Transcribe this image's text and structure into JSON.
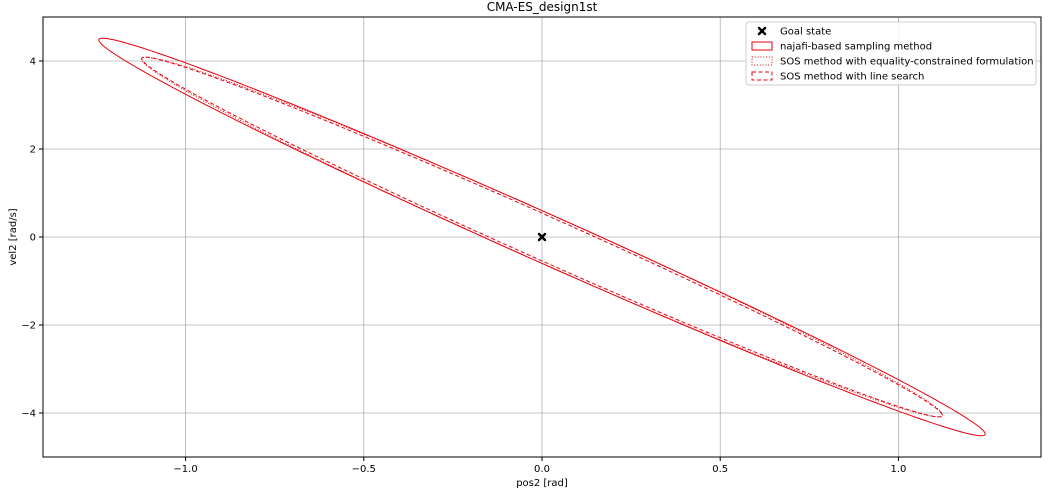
{
  "chart_data": {
    "type": "line",
    "title": "CMA-ES_design1st",
    "xlabel": "pos2 [rad]",
    "ylabel": "vel2 [rad/s]",
    "xlim": [
      -1.4,
      1.4
    ],
    "ylim": [
      -5.0,
      5.0
    ],
    "xticks": [
      -1.0,
      -0.5,
      0.0,
      0.5,
      1.0
    ],
    "xtick_labels": [
      "−1.0",
      "−0.5",
      "0.0",
      "0.5",
      "1.0"
    ],
    "yticks": [
      -4,
      -2,
      0,
      2,
      4
    ],
    "ytick_labels": [
      "−4",
      "−2",
      "0",
      "2",
      "4"
    ],
    "grid": true,
    "legend_placement": "top-right",
    "color": "#e8000b",
    "goal_state": {
      "name": "Goal state",
      "x": 0.0,
      "y": 0.0,
      "marker": "X",
      "color": "#000000"
    },
    "series": [
      {
        "name": "najafi-based sampling method",
        "style": "solid",
        "ellipse": {
          "center": [
            0,
            0
          ],
          "vertex": [
            1.24,
            -4.51
          ],
          "co_vertex": [
            -0.094,
            -0.26
          ]
        }
      },
      {
        "name": "SOS method with equality-constrained formulation",
        "style": "dotted",
        "ellipse": {
          "center": [
            0,
            0
          ],
          "vertex": [
            1.12,
            -4.08
          ],
          "co_vertex": [
            -0.094,
            -0.26
          ]
        }
      },
      {
        "name": "SOS method with line search",
        "style": "dashed",
        "ellipse": {
          "center": [
            0,
            0
          ],
          "vertex": [
            1.12,
            -4.08
          ],
          "co_vertex": [
            -0.085,
            -0.235
          ]
        }
      }
    ]
  }
}
